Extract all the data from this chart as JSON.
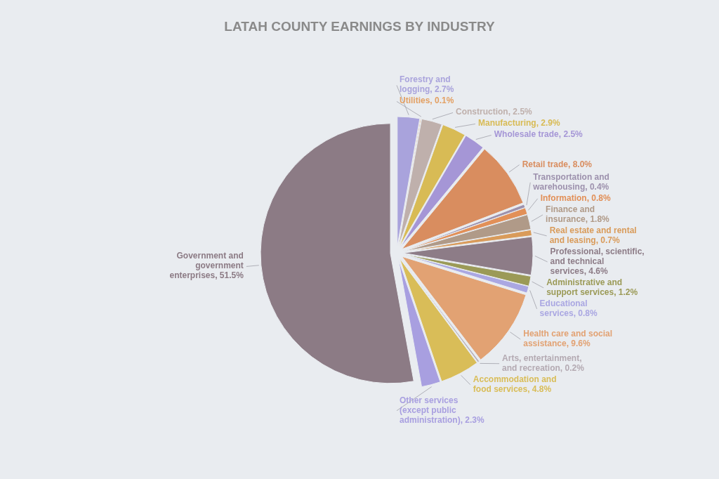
{
  "chart_data": {
    "type": "pie",
    "title": "LATAH COUNTY EARNINGS BY INDUSTRY",
    "categories": [
      "Forestry and logging",
      "Utilities",
      "Construction",
      "Manufacturing",
      "Wholesale trade",
      "Retail trade",
      "Transportation and warehousing",
      "Information",
      "Finance and insurance",
      "Real estate and rental and leasing",
      "Professional, scientific, and technical services",
      "Administrative and support services",
      "Educational services",
      "Health care and social assistance",
      "Arts, entertainment, and recreation",
      "Accommodation and food services",
      "Other services (except public administration)",
      "Government and government enterprises"
    ],
    "values": [
      2.7,
      0.1,
      2.5,
      2.9,
      2.5,
      8.0,
      0.4,
      0.8,
      1.8,
      0.7,
      4.6,
      1.2,
      0.8,
      9.6,
      0.2,
      4.8,
      2.3,
      51.5
    ],
    "value_labels": [
      "2.7%",
      "0.1%",
      "2.5%",
      "2.9%",
      "2.5%",
      "8.0%",
      "0.4%",
      "0.8%",
      "1.8%",
      "0.7%",
      "4.6%",
      "1.2%",
      "0.8%",
      "9.6%",
      "0.2%",
      "4.8%",
      "2.3%",
      "51.5%"
    ],
    "colors": [
      "#a9a3dc",
      "#e3a063",
      "#bfb0ac",
      "#d8bb55",
      "#a596d6",
      "#d98d5f",
      "#9d91ad",
      "#e29058",
      "#b09a88",
      "#d99b5a",
      "#8d7c87",
      "#9b9a57",
      "#aaa7e2",
      "#e2a273",
      "#b4aab2",
      "#d9bd58",
      "#a89fe0",
      "#8c7b85"
    ]
  }
}
